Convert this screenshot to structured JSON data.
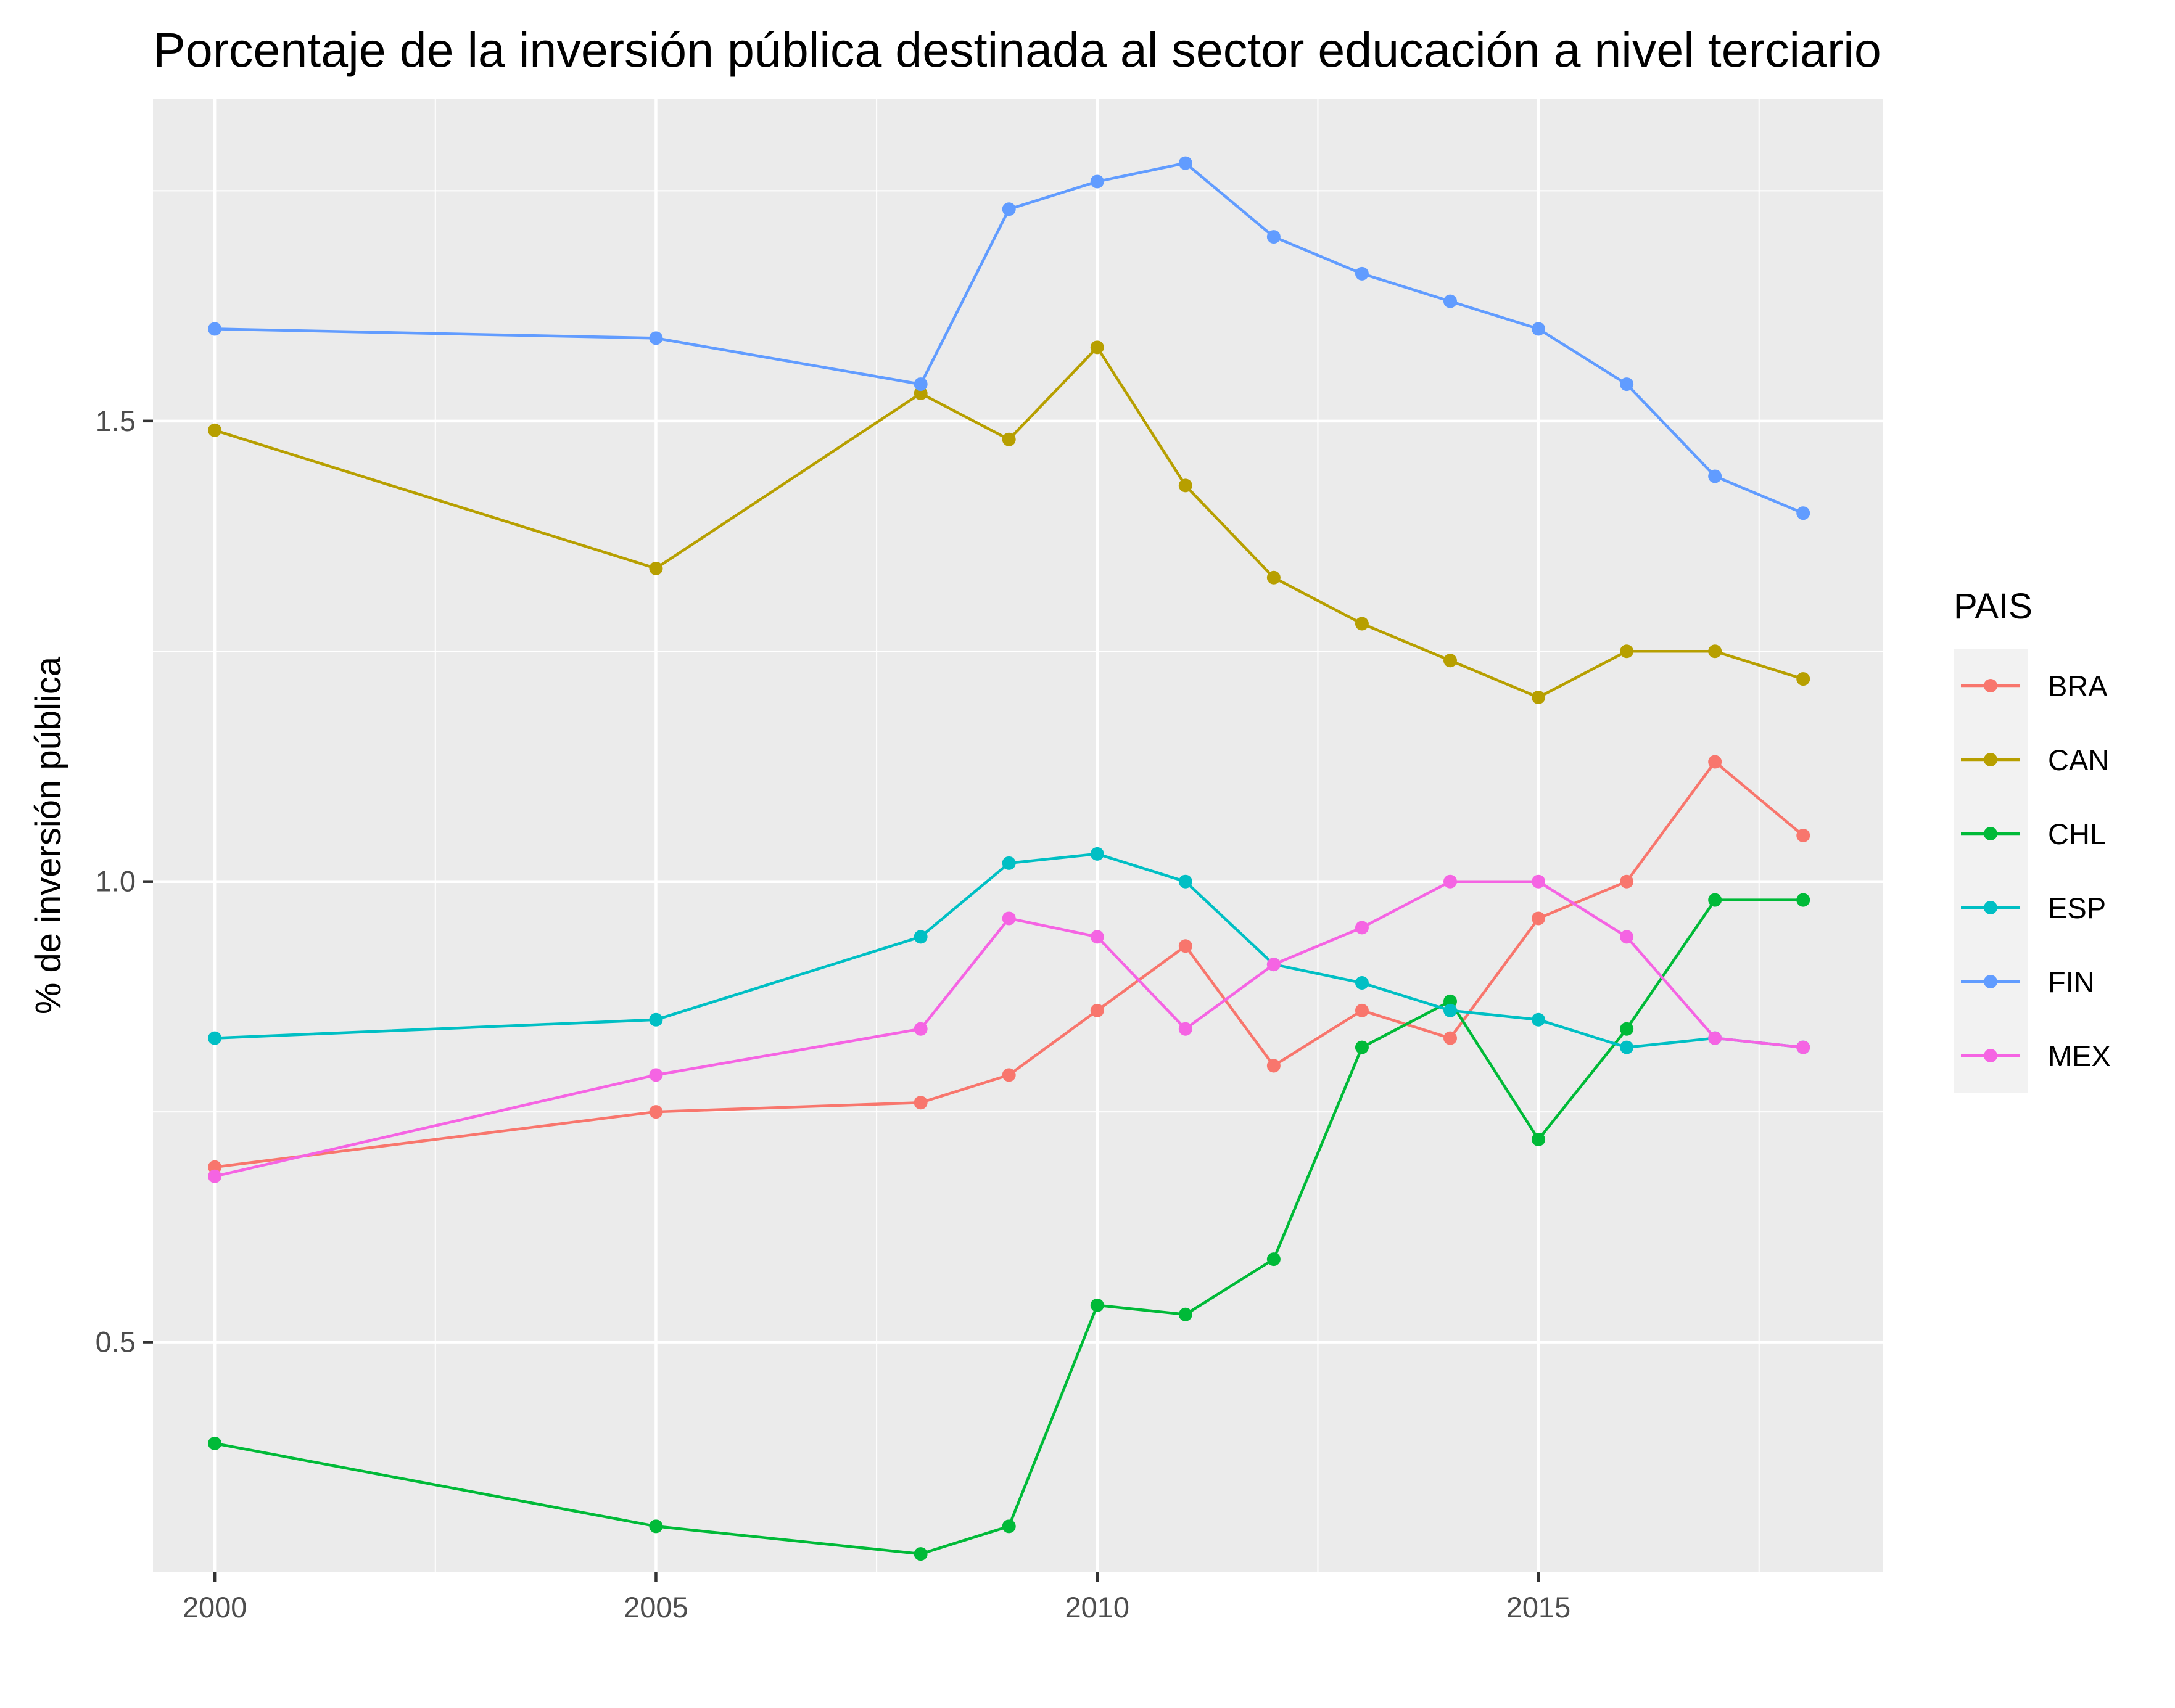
{
  "chart_data": {
    "type": "line",
    "title": "Porcentaje de la inversión pública destinada al sector educación a nivel terciario",
    "xlabel": "",
    "ylabel": "% de inversión pública",
    "x_ticks": [
      2000,
      2005,
      2010,
      2015
    ],
    "y_ticks": [
      0.5,
      1.0,
      1.5
    ],
    "y_tick_labels": [
      "0.5",
      "1.0",
      "1.5"
    ],
    "xlim": [
      1999.3,
      2018.9
    ],
    "ylim": [
      0.25,
      1.85
    ],
    "grid": true,
    "legend": {
      "title": "PAIS",
      "position": "right"
    },
    "x": [
      2000,
      2005,
      2008,
      2009,
      2010,
      2011,
      2012,
      2013,
      2014,
      2015,
      2016,
      2017,
      2018
    ],
    "series": [
      {
        "name": "BRA",
        "color": "#F8766D",
        "values": [
          0.69,
          0.75,
          0.76,
          0.79,
          0.86,
          0.93,
          0.8,
          0.86,
          0.83,
          0.96,
          1.0,
          1.13,
          1.05
        ]
      },
      {
        "name": "CAN",
        "color": "#B79F00",
        "values": [
          1.49,
          1.34,
          1.53,
          1.48,
          1.58,
          1.43,
          1.33,
          1.28,
          1.24,
          1.2,
          1.25,
          1.25,
          1.22
        ]
      },
      {
        "name": "CHL",
        "color": "#00BA38",
        "values": [
          0.39,
          0.3,
          0.27,
          0.3,
          0.54,
          0.53,
          0.59,
          0.82,
          0.87,
          0.72,
          0.84,
          0.98,
          0.98
        ]
      },
      {
        "name": "ESP",
        "color": "#00BFC4",
        "values": [
          0.83,
          0.85,
          0.94,
          1.02,
          1.03,
          1.0,
          0.91,
          0.89,
          0.86,
          0.85,
          0.82,
          0.83,
          0.82
        ]
      },
      {
        "name": "FIN",
        "color": "#619CFF",
        "values": [
          1.6,
          1.59,
          1.54,
          1.73,
          1.76,
          1.78,
          1.7,
          1.66,
          1.63,
          1.6,
          1.54,
          1.44,
          1.4
        ]
      },
      {
        "name": "MEX",
        "color": "#F564E3",
        "values": [
          0.68,
          0.79,
          0.84,
          0.96,
          0.94,
          0.84,
          0.91,
          0.95,
          1.0,
          1.0,
          0.94,
          0.83,
          0.82
        ]
      }
    ]
  }
}
